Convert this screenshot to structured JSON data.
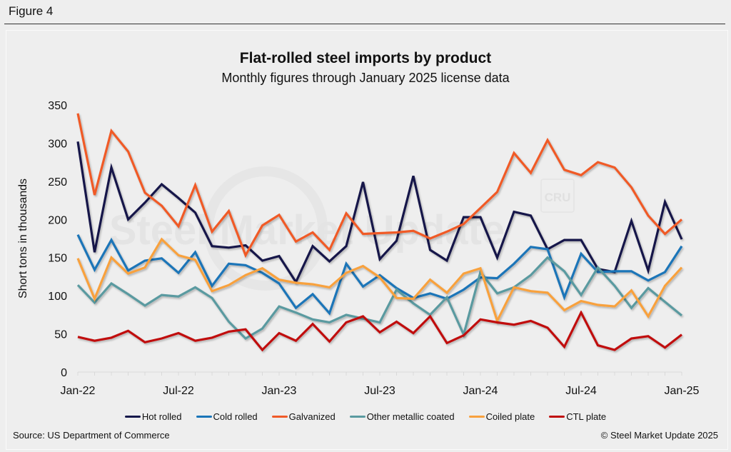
{
  "figure_label": "Figure 4",
  "source": "Source: US Department of Commerce",
  "copyright": "© Steel Market Update 2025",
  "watermark": {
    "text": "Steel Market Update",
    "badge": "CRU"
  },
  "chart_data": {
    "type": "line",
    "title": "Flat-rolled steel imports by product",
    "subtitle": "Monthly figures through January 2025 license data",
    "xlabel": "",
    "ylabel": "Short tons in thousands",
    "ylim": [
      0,
      350
    ],
    "yticks": [
      0,
      50,
      100,
      150,
      200,
      250,
      300,
      350
    ],
    "xtick_labels": [
      "Jan-22",
      "Jul-22",
      "Jan-23",
      "Jul-23",
      "Jan-24",
      "Jul-24",
      "Jan-25"
    ],
    "xtick_every": 6,
    "grid": false,
    "legend_position": "bottom",
    "x": [
      "Jan-22",
      "Feb-22",
      "Mar-22",
      "Apr-22",
      "May-22",
      "Jun-22",
      "Jul-22",
      "Aug-22",
      "Sep-22",
      "Oct-22",
      "Nov-22",
      "Dec-22",
      "Jan-23",
      "Feb-23",
      "Mar-23",
      "Apr-23",
      "May-23",
      "Jun-23",
      "Jul-23",
      "Aug-23",
      "Sep-23",
      "Oct-23",
      "Nov-23",
      "Dec-23",
      "Jan-24",
      "Feb-24",
      "Mar-24",
      "Apr-24",
      "May-24",
      "Jun-24",
      "Jul-24",
      "Aug-24",
      "Sep-24",
      "Oct-24",
      "Nov-24",
      "Dec-24",
      "Jan-25"
    ],
    "series": [
      {
        "name": "Hot rolled",
        "color": "#15174a",
        "values": [
          302,
          157,
          268,
          200,
          222,
          246,
          228,
          209,
          165,
          163,
          166,
          146,
          152,
          118,
          165,
          145,
          165,
          249,
          148,
          172,
          257,
          160,
          146,
          203,
          203,
          150,
          210,
          205,
          161,
          173,
          173,
          135,
          131,
          198,
          133,
          223,
          174
        ]
      },
      {
        "name": "Cold rolled",
        "color": "#1a75b8",
        "values": [
          180,
          134,
          173,
          133,
          146,
          149,
          130,
          157,
          113,
          142,
          140,
          130,
          116,
          84,
          102,
          77,
          142,
          112,
          127,
          110,
          97,
          103,
          96,
          108,
          124,
          123,
          142,
          164,
          161,
          98,
          155,
          131,
          132,
          132,
          120,
          131,
          165
        ]
      },
      {
        "name": "Galvanized",
        "color": "#f05a28",
        "values": [
          339,
          232,
          316,
          289,
          235,
          218,
          191,
          245,
          184,
          211,
          153,
          192,
          206,
          171,
          183,
          160,
          208,
          181,
          182,
          183,
          185,
          175,
          184,
          194,
          215,
          236,
          287,
          261,
          304,
          265,
          258,
          275,
          268,
          242,
          205,
          181,
          200
        ]
      },
      {
        "name": "Other metallic coated",
        "color": "#5a9aa0",
        "values": [
          114,
          91,
          116,
          102,
          87,
          101,
          99,
          111,
          97,
          66,
          44,
          57,
          86,
          78,
          69,
          65,
          75,
          70,
          65,
          108,
          90,
          75,
          98,
          49,
          131,
          103,
          111,
          127,
          150,
          132,
          101,
          137,
          113,
          84,
          110,
          92,
          74
        ]
      },
      {
        "name": "Coiled plate",
        "color": "#f8a13e",
        "values": [
          149,
          96,
          150,
          129,
          137,
          174,
          153,
          147,
          106,
          114,
          127,
          136,
          121,
          117,
          115,
          111,
          130,
          139,
          124,
          97,
          96,
          121,
          104,
          129,
          136,
          67,
          111,
          106,
          104,
          81,
          93,
          88,
          86,
          107,
          73,
          113,
          137
        ]
      },
      {
        "name": "CTL plate",
        "color": "#c00d0d",
        "values": [
          46,
          41,
          45,
          54,
          39,
          44,
          51,
          41,
          45,
          53,
          56,
          29,
          51,
          41,
          63,
          40,
          65,
          73,
          52,
          66,
          51,
          73,
          38,
          48,
          69,
          65,
          62,
          67,
          58,
          33,
          78,
          35,
          29,
          44,
          47,
          32,
          49
        ]
      }
    ]
  }
}
